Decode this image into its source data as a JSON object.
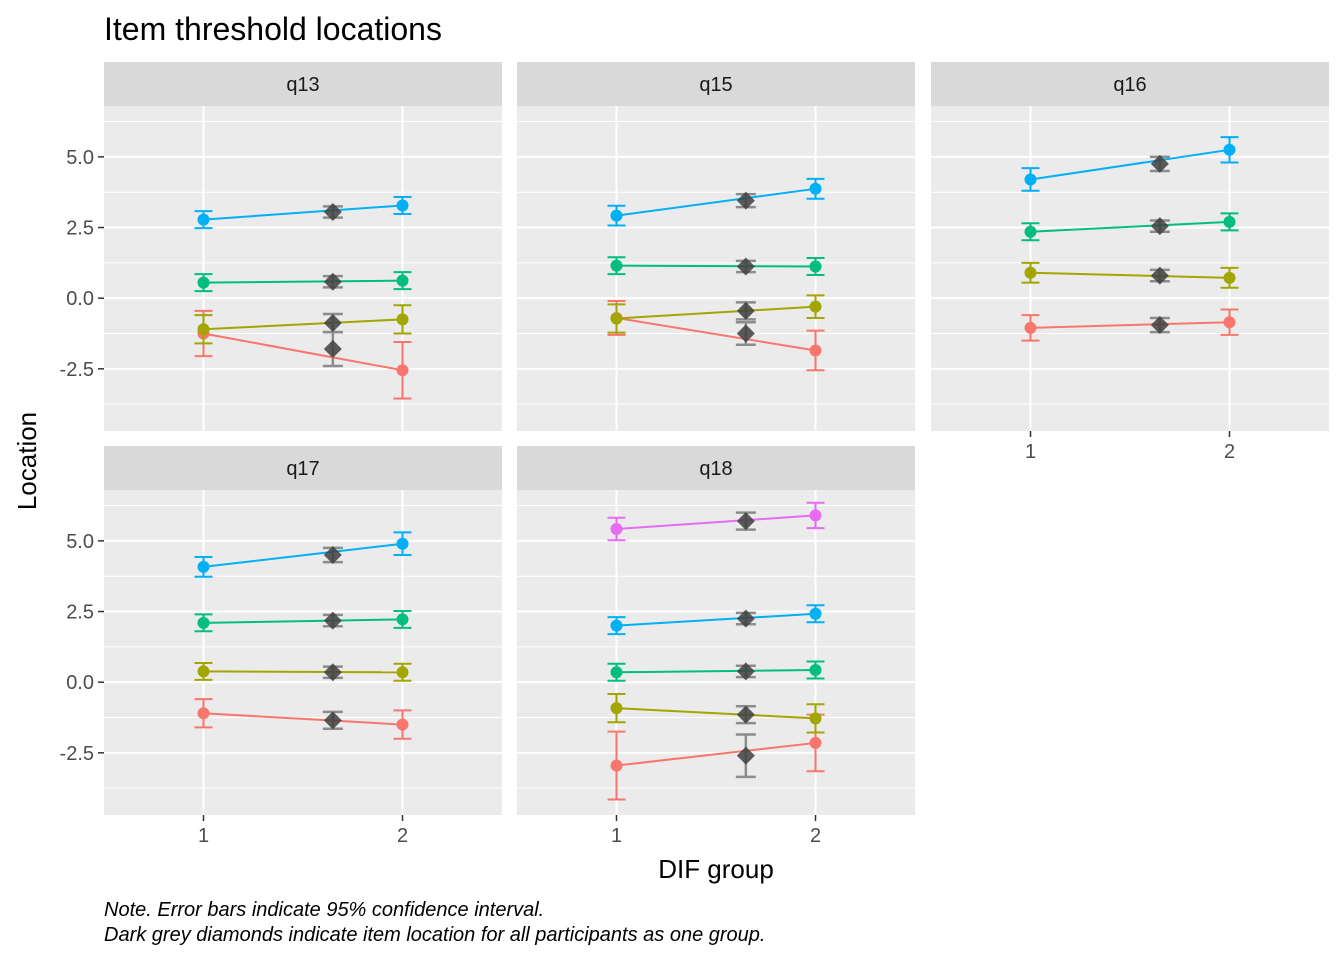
{
  "chart_data": {
    "type": "line",
    "title": "Item threshold locations",
    "xlabel": "DIF group",
    "ylabel": "Location",
    "caption": [
      "Note. Error bars indicate 95% confidence interval.",
      "Dark grey diamonds indicate item location for all participants as one group."
    ],
    "x_ticks": [
      "1",
      "2"
    ],
    "y_ticks": [
      5.0,
      2.5,
      0.0,
      -2.5
    ],
    "y_tick_labels": [
      "5.0",
      "2.5",
      "0.0",
      "-2.5"
    ],
    "ylim": [
      -4.7,
      6.8
    ],
    "xlim": [
      0.5,
      2.5
    ],
    "grid": true,
    "threshold_colors": [
      "#F8766D",
      "#A3A500",
      "#00BF7D",
      "#00B0F6",
      "#E76BF3"
    ],
    "overall_marker_color": "#3f3f3f",
    "panels": [
      {
        "name": "q13",
        "thresholds": [
          {
            "g1": [
              -1.25,
              -2.05,
              -0.45
            ],
            "g2": [
              -2.55,
              -3.55,
              -1.55
            ],
            "all": [
              -1.8,
              -2.4,
              -1.2
            ],
            "all_x": 1.65
          },
          {
            "g1": [
              -1.1,
              -1.6,
              -0.6
            ],
            "g2": [
              -0.75,
              -1.25,
              -0.25
            ],
            "all": [
              -0.88,
              -1.2,
              -0.56
            ],
            "all_x": 1.65
          },
          {
            "g1": [
              0.55,
              0.25,
              0.85
            ],
            "g2": [
              0.62,
              0.32,
              0.92
            ],
            "all": [
              0.58,
              0.38,
              0.78
            ],
            "all_x": 1.65
          },
          {
            "g1": [
              2.78,
              2.48,
              3.08
            ],
            "g2": [
              3.28,
              2.98,
              3.58
            ],
            "all": [
              3.05,
              2.85,
              3.25
            ],
            "all_x": 1.65
          }
        ]
      },
      {
        "name": "q15",
        "thresholds": [
          {
            "g1": [
              -0.7,
              -1.3,
              -0.1
            ],
            "g2": [
              -1.85,
              -2.55,
              -1.15
            ],
            "all": [
              -1.25,
              -1.65,
              -0.85
            ],
            "all_x": 1.65
          },
          {
            "g1": [
              -0.72,
              -1.22,
              -0.22
            ],
            "g2": [
              -0.3,
              -0.7,
              0.1
            ],
            "all": [
              -0.45,
              -0.75,
              -0.15
            ],
            "all_x": 1.65
          },
          {
            "g1": [
              1.15,
              0.85,
              1.45
            ],
            "g2": [
              1.12,
              0.82,
              1.42
            ],
            "all": [
              1.12,
              0.92,
              1.32
            ],
            "all_x": 1.65
          },
          {
            "g1": [
              2.92,
              2.57,
              3.27
            ],
            "g2": [
              3.87,
              3.52,
              4.22
            ],
            "all": [
              3.45,
              3.22,
              3.68
            ],
            "all_x": 1.65
          }
        ]
      },
      {
        "name": "q16",
        "thresholds": [
          {
            "g1": [
              -1.05,
              -1.5,
              -0.6
            ],
            "g2": [
              -0.85,
              -1.3,
              -0.4
            ],
            "all": [
              -0.95,
              -1.2,
              -0.7
            ],
            "all_x": 1.65
          },
          {
            "g1": [
              0.9,
              0.55,
              1.25
            ],
            "g2": [
              0.72,
              0.37,
              1.07
            ],
            "all": [
              0.8,
              0.6,
              1.0
            ],
            "all_x": 1.65
          },
          {
            "g1": [
              2.35,
              2.05,
              2.65
            ],
            "g2": [
              2.7,
              2.4,
              3.0
            ],
            "all": [
              2.55,
              2.35,
              2.75
            ],
            "all_x": 1.65
          },
          {
            "g1": [
              4.2,
              3.8,
              4.6
            ],
            "g2": [
              5.25,
              4.8,
              5.7
            ],
            "all": [
              4.75,
              4.5,
              5.0
            ],
            "all_x": 1.65
          }
        ]
      },
      {
        "name": "q17",
        "thresholds": [
          {
            "g1": [
              -1.1,
              -1.6,
              -0.6
            ],
            "g2": [
              -1.5,
              -2.0,
              -1.0
            ],
            "all": [
              -1.35,
              -1.65,
              -1.05
            ],
            "all_x": 1.65
          },
          {
            "g1": [
              0.38,
              0.08,
              0.68
            ],
            "g2": [
              0.35,
              0.05,
              0.65
            ],
            "all": [
              0.35,
              0.15,
              0.55
            ],
            "all_x": 1.65
          },
          {
            "g1": [
              2.1,
              1.8,
              2.4
            ],
            "g2": [
              2.22,
              1.92,
              2.52
            ],
            "all": [
              2.18,
              1.98,
              2.38
            ],
            "all_x": 1.65
          },
          {
            "g1": [
              4.08,
              3.73,
              4.43
            ],
            "g2": [
              4.9,
              4.5,
              5.3
            ],
            "all": [
              4.5,
              4.25,
              4.75
            ],
            "all_x": 1.65
          }
        ]
      },
      {
        "name": "q18",
        "thresholds": [
          {
            "g1": [
              -2.95,
              -4.15,
              -1.75
            ],
            "g2": [
              -2.15,
              -3.15,
              -1.15
            ],
            "all": [
              -2.6,
              -3.35,
              -1.85
            ],
            "all_x": 1.65
          },
          {
            "g1": [
              -0.92,
              -1.42,
              -0.42
            ],
            "g2": [
              -1.28,
              -1.78,
              -0.78
            ],
            "all": [
              -1.15,
              -1.45,
              -0.85
            ],
            "all_x": 1.65
          },
          {
            "g1": [
              0.35,
              0.05,
              0.65
            ],
            "g2": [
              0.43,
              0.13,
              0.73
            ],
            "all": [
              0.38,
              0.18,
              0.58
            ],
            "all_x": 1.65
          },
          {
            "g1": [
              2.0,
              1.7,
              2.3
            ],
            "g2": [
              2.42,
              2.12,
              2.72
            ],
            "all": [
              2.25,
              2.05,
              2.45
            ],
            "all_x": 1.65
          },
          {
            "g1": [
              5.42,
              5.02,
              5.82
            ],
            "g2": [
              5.9,
              5.45,
              6.35
            ],
            "all": [
              5.7,
              5.4,
              6.0
            ],
            "all_x": 1.65
          }
        ]
      }
    ]
  }
}
